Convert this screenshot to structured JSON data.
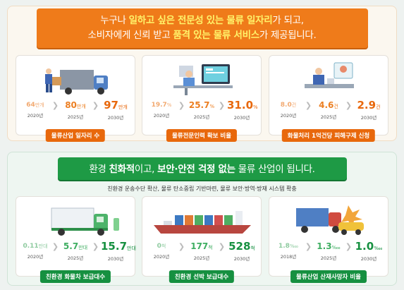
{
  "top": {
    "banner": {
      "line1_pre": "누구나 ",
      "line1_hl": "일하고 싶은 전문성 있는 물류 일자리",
      "line1_post": "가 되고,",
      "line2_pre": "소비자에게 신뢰 받고 ",
      "line2_hl": "품격 있는 물류 서비스",
      "line2_post": "가 제공됩니다."
    },
    "cards": [
      {
        "label": "물류산업 일자리 수",
        "metrics": [
          {
            "value": "64",
            "unit": "만개",
            "year": "2020년"
          },
          {
            "value": "80",
            "unit": "만개",
            "year": "2025년"
          },
          {
            "value": "97",
            "unit": "만개",
            "year": "2030년"
          }
        ]
      },
      {
        "label": "물류전문인력 확보 비율",
        "metrics": [
          {
            "value": "19.7",
            "unit": "%",
            "year": "2020년"
          },
          {
            "value": "25.7",
            "unit": "%",
            "year": "2025년"
          },
          {
            "value": "31.0",
            "unit": "%",
            "year": "2030년"
          }
        ]
      },
      {
        "label": "화물처리 1억건당 피해구제 신청",
        "metrics": [
          {
            "value": "8.0",
            "unit": "건",
            "year": "2020년"
          },
          {
            "value": "4.6",
            "unit": "건",
            "year": "2025년"
          },
          {
            "value": "2.9",
            "unit": "건",
            "year": "2030년"
          }
        ]
      }
    ]
  },
  "bottom": {
    "banner": {
      "pre": "환경 ",
      "hl1": "친화적",
      "mid": "이고, ",
      "hl2": "보안·안전 걱정 없는",
      "post": " 물류 산업이 됩니다."
    },
    "subtitle": "친환경 운송수단 확산, 물류 탄소중립 기반마련, 물류 보안·방역·방재 시스템 확충",
    "cards": [
      {
        "label": "친환경 화물차 보급대수",
        "metrics": [
          {
            "value": "0.11",
            "unit": "만대",
            "year": "2020년"
          },
          {
            "value": "5.7",
            "unit": "만대",
            "year": "2025년"
          },
          {
            "value": "15.7",
            "unit": "만대",
            "year": "2030년"
          }
        ]
      },
      {
        "label": "친환경 선박 보급대수",
        "metrics": [
          {
            "value": "0",
            "unit": "척",
            "year": "2020년"
          },
          {
            "value": "177",
            "unit": "척",
            "year": "2025년"
          },
          {
            "value": "528",
            "unit": "척",
            "year": "2030년"
          }
        ]
      },
      {
        "label": "물류산업 산재사망자 비율",
        "metrics": [
          {
            "value": "1.8",
            "unit": "‱",
            "year": "2018년"
          },
          {
            "value": "1.3",
            "unit": "‱",
            "year": "2025년"
          },
          {
            "value": "1.0",
            "unit": "‱",
            "year": "2030년"
          }
        ]
      }
    ]
  }
}
